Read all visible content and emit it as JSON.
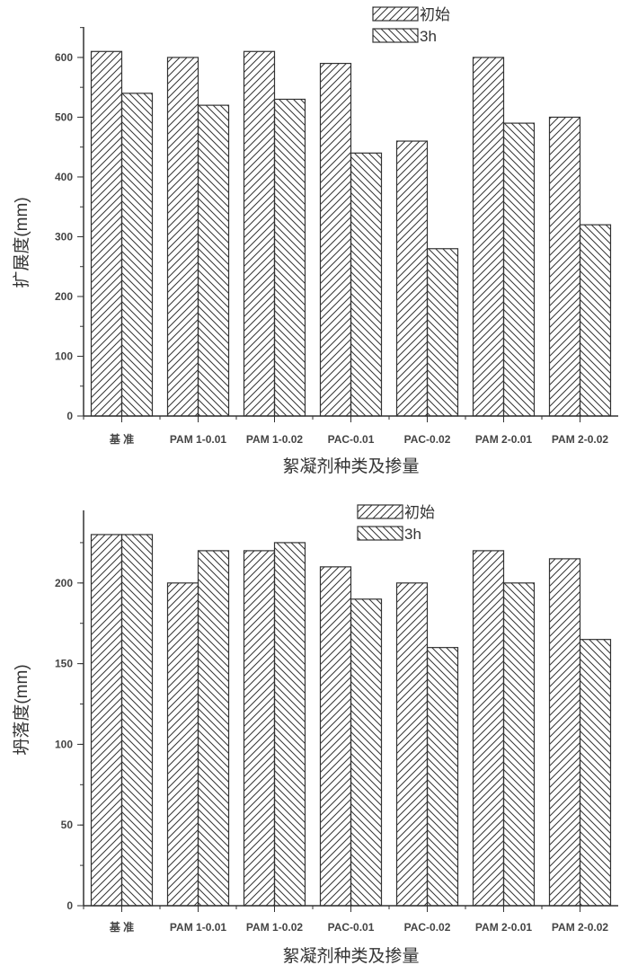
{
  "chart_data": [
    {
      "type": "bar",
      "xlabel": "絮凝剂种类及掺量",
      "ylabel": "扩展度(mm)",
      "categories": [
        "基 准",
        "PAM 1-0.01",
        "PAM 1-0.02",
        "PAC-0.01",
        "PAC-0.02",
        "PAM 2-0.01",
        "PAM 2-0.02"
      ],
      "series": [
        {
          "name": "初始",
          "values": [
            610,
            600,
            610,
            590,
            460,
            600,
            500
          ],
          "pattern": "forward-hatch"
        },
        {
          "name": "3h",
          "values": [
            540,
            520,
            530,
            440,
            280,
            490,
            320
          ],
          "pattern": "back-hatch"
        }
      ],
      "ylim": [
        0,
        651
      ],
      "yticks": [
        0,
        100,
        200,
        300,
        400,
        500,
        600
      ],
      "minor_step": 50,
      "grid": false,
      "legend": "top-right",
      "colors": {
        "stroke": "#333333",
        "background": "#ffffff"
      }
    },
    {
      "type": "bar",
      "xlabel": "絮凝剂种类及掺量",
      "ylabel": "坍落度(mm)",
      "categories": [
        "基 准",
        "PAM 1-0.01",
        "PAM 1-0.02",
        "PAC-0.01",
        "PAC-0.02",
        "PAM 2-0.01",
        "PAM 2-0.02"
      ],
      "series": [
        {
          "name": "初始",
          "values": [
            230,
            200,
            220,
            210,
            200,
            220,
            215
          ],
          "pattern": "forward-hatch"
        },
        {
          "name": "3h",
          "values": [
            230,
            220,
            225,
            190,
            160,
            200,
            165
          ],
          "pattern": "back-hatch"
        }
      ],
      "ylim": [
        0,
        245
      ],
      "yticks": [
        0,
        50,
        100,
        150,
        200
      ],
      "minor_step": 25,
      "grid": false,
      "legend": "top-right",
      "colors": {
        "stroke": "#333333",
        "background": "#ffffff"
      }
    }
  ]
}
